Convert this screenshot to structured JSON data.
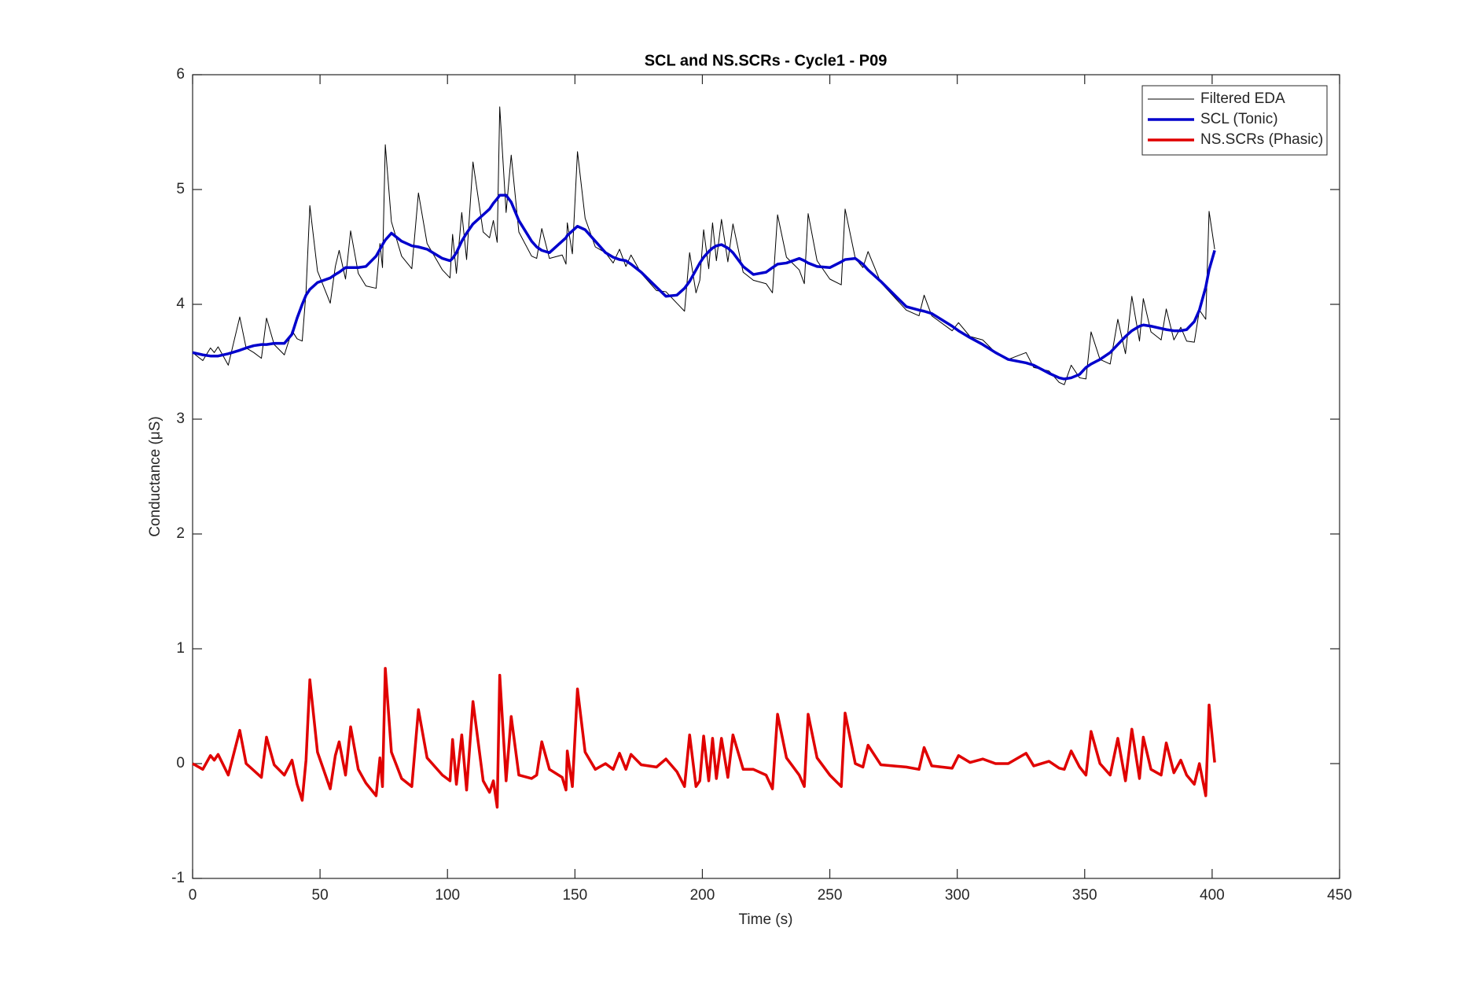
{
  "chart_data": {
    "type": "line",
    "title": "SCL and NS.SCRs - Cycle1 - P09",
    "x_label": "Time (s)",
    "y_label": "Conductance (μS)",
    "xlim": [
      0,
      450
    ],
    "xticks": [
      0,
      50,
      100,
      150,
      200,
      250,
      300,
      350,
      400,
      450
    ],
    "ylim": [
      -1,
      6
    ],
    "yticks": [
      -1,
      0,
      1,
      2,
      3,
      4,
      5,
      6
    ],
    "legend": "northeast",
    "box": true,
    "x": [
      0,
      4,
      7,
      8.5,
      10,
      14,
      18.5,
      21,
      24,
      27,
      29,
      32,
      36,
      39,
      41,
      43,
      44.5,
      46,
      49,
      54,
      56,
      57.5,
      60,
      62,
      65,
      68,
      72,
      73.5,
      74.5,
      75.6,
      78,
      82,
      86,
      88.6,
      92,
      98,
      101,
      102,
      103.5,
      105.6,
      107.5,
      110,
      114,
      116.5,
      118,
      119.5,
      120.5,
      123,
      125,
      128,
      133,
      135,
      137,
      140,
      145,
      146.5,
      147,
      149,
      151,
      154,
      158,
      162,
      165,
      167.5,
      170,
      172,
      176,
      182,
      185.7,
      190,
      193,
      195,
      197.5,
      199,
      200.5,
      202.5,
      204,
      205.5,
      207.5,
      210,
      212,
      216,
      220,
      225,
      227.5,
      229.5,
      233,
      238,
      240,
      241.5,
      245,
      250,
      254.5,
      256,
      260,
      263,
      265,
      270,
      280,
      285,
      287,
      290,
      298,
      300.5,
      305,
      310,
      315,
      320,
      327,
      330,
      336,
      340,
      342,
      344.7,
      348,
      350.5,
      352.5,
      356,
      360,
      363,
      366,
      368.5,
      371.5,
      373,
      376,
      380,
      382,
      385,
      387.7,
      390,
      393,
      395,
      397.5,
      398.8,
      401
    ],
    "series": [
      {
        "name": "Filtered EDA",
        "color": "#000000",
        "width": 1,
        "values": [
          3.58,
          3.51,
          3.62,
          3.58,
          3.63,
          3.47,
          3.89,
          3.62,
          3.58,
          3.53,
          3.88,
          3.65,
          3.56,
          3.77,
          3.7,
          3.68,
          4.11,
          4.86,
          4.29,
          4.01,
          4.33,
          4.47,
          4.22,
          4.64,
          4.27,
          4.16,
          4.14,
          4.53,
          4.32,
          5.39,
          4.72,
          4.42,
          4.31,
          4.97,
          4.53,
          4.3,
          4.23,
          4.61,
          4.27,
          4.8,
          4.39,
          5.24,
          4.63,
          4.58,
          4.73,
          4.54,
          5.72,
          4.8,
          5.3,
          4.63,
          4.42,
          4.4,
          4.66,
          4.4,
          4.43,
          4.35,
          4.71,
          4.44,
          5.33,
          4.75,
          4.5,
          4.45,
          4.36,
          4.48,
          4.33,
          4.43,
          4.27,
          4.12,
          4.11,
          4.01,
          3.94,
          4.45,
          4.1,
          4.21,
          4.65,
          4.31,
          4.71,
          4.38,
          4.74,
          4.37,
          4.7,
          4.28,
          4.21,
          4.18,
          4.1,
          4.78,
          4.41,
          4.3,
          4.18,
          4.79,
          4.38,
          4.22,
          4.17,
          4.83,
          4.4,
          4.32,
          4.46,
          4.19,
          3.95,
          3.9,
          4.08,
          3.9,
          3.77,
          3.84,
          3.72,
          3.69,
          3.58,
          3.52,
          3.58,
          3.45,
          3.42,
          3.32,
          3.3,
          3.47,
          3.36,
          3.35,
          3.76,
          3.52,
          3.48,
          3.87,
          3.57,
          4.07,
          3.68,
          4.05,
          3.76,
          3.69,
          3.96,
          3.69,
          3.8,
          3.68,
          3.67,
          3.95,
          3.87,
          4.81,
          4.48
        ]
      },
      {
        "name": "SCL (Tonic)",
        "color": "#0000cc",
        "width": 3.5,
        "values": [
          3.58,
          3.56,
          3.55,
          3.55,
          3.55,
          3.57,
          3.6,
          3.62,
          3.64,
          3.65,
          3.65,
          3.66,
          3.66,
          3.74,
          3.88,
          4.0,
          4.08,
          4.13,
          4.19,
          4.23,
          4.26,
          4.28,
          4.32,
          4.32,
          4.32,
          4.33,
          4.42,
          4.48,
          4.52,
          4.56,
          4.62,
          4.55,
          4.51,
          4.5,
          4.48,
          4.4,
          4.38,
          4.4,
          4.45,
          4.55,
          4.62,
          4.7,
          4.78,
          4.83,
          4.88,
          4.92,
          4.95,
          4.95,
          4.89,
          4.73,
          4.55,
          4.5,
          4.47,
          4.45,
          4.55,
          4.58,
          4.6,
          4.64,
          4.68,
          4.65,
          4.55,
          4.45,
          4.41,
          4.39,
          4.38,
          4.35,
          4.28,
          4.15,
          4.07,
          4.08,
          4.14,
          4.2,
          4.3,
          4.36,
          4.41,
          4.46,
          4.49,
          4.51,
          4.52,
          4.49,
          4.45,
          4.33,
          4.26,
          4.28,
          4.32,
          4.35,
          4.36,
          4.4,
          4.38,
          4.36,
          4.33,
          4.32,
          4.37,
          4.39,
          4.4,
          4.35,
          4.3,
          4.2,
          3.98,
          3.95,
          3.94,
          3.92,
          3.81,
          3.77,
          3.71,
          3.65,
          3.58,
          3.52,
          3.49,
          3.47,
          3.4,
          3.36,
          3.35,
          3.36,
          3.39,
          3.45,
          3.48,
          3.52,
          3.58,
          3.65,
          3.72,
          3.77,
          3.81,
          3.82,
          3.81,
          3.79,
          3.78,
          3.77,
          3.77,
          3.78,
          3.85,
          3.95,
          4.15,
          4.3,
          4.47
        ]
      },
      {
        "name": "NS.SCRs (Phasic)",
        "color": "#e00000",
        "width": 3.5,
        "values": [
          0,
          -0.05,
          0.07,
          0.03,
          0.08,
          -0.1,
          0.29,
          0.0,
          -0.06,
          -0.12,
          0.23,
          -0.01,
          -0.1,
          0.03,
          -0.18,
          -0.32,
          0.03,
          0.73,
          0.1,
          -0.22,
          0.07,
          0.19,
          -0.1,
          0.32,
          -0.05,
          -0.17,
          -0.28,
          0.05,
          -0.2,
          0.83,
          0.1,
          -0.13,
          -0.2,
          0.47,
          0.05,
          -0.1,
          -0.15,
          0.21,
          -0.18,
          0.25,
          -0.23,
          0.54,
          -0.15,
          -0.25,
          -0.15,
          -0.38,
          0.77,
          -0.15,
          0.41,
          -0.1,
          -0.13,
          -0.1,
          0.19,
          -0.05,
          -0.12,
          -0.23,
          0.11,
          -0.2,
          0.65,
          0.1,
          -0.05,
          0.0,
          -0.05,
          0.09,
          -0.05,
          0.08,
          -0.01,
          -0.03,
          0.04,
          -0.07,
          -0.2,
          0.25,
          -0.2,
          -0.15,
          0.24,
          -0.15,
          0.22,
          -0.13,
          0.22,
          -0.12,
          0.25,
          -0.05,
          -0.05,
          -0.1,
          -0.22,
          0.43,
          0.05,
          -0.1,
          -0.2,
          0.43,
          0.05,
          -0.1,
          -0.2,
          0.44,
          0.0,
          -0.03,
          0.16,
          -0.01,
          -0.03,
          -0.05,
          0.14,
          -0.02,
          -0.04,
          0.07,
          0.01,
          0.04,
          0.0,
          0.0,
          0.09,
          -0.02,
          0.02,
          -0.04,
          -0.05,
          0.11,
          -0.03,
          -0.1,
          0.28,
          0.0,
          -0.1,
          0.22,
          -0.15,
          0.3,
          -0.13,
          0.23,
          -0.05,
          -0.1,
          0.18,
          -0.08,
          0.03,
          -0.1,
          -0.18,
          0.0,
          -0.28,
          0.51,
          0.01
        ]
      }
    ]
  }
}
